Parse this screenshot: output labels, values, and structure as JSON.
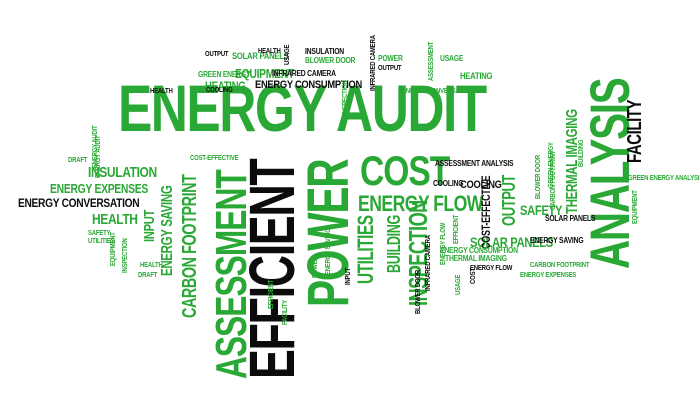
{
  "colors": {
    "green": "#2aa835",
    "dark_green": "#1f7f2a",
    "black": "#0c0c0c"
  },
  "words": [
    {
      "text": "ENERGY AUDIT",
      "color": "green",
      "role": "headline"
    },
    {
      "text": "ANALYSIS",
      "color": "green"
    },
    {
      "text": "EFFICIENT",
      "color": "black"
    },
    {
      "text": "POWER",
      "color": "green"
    },
    {
      "text": "ASSESSMENT",
      "color": "green"
    },
    {
      "text": "COST",
      "color": "green"
    },
    {
      "text": "ENERGY FLOW",
      "color": "green"
    },
    {
      "text": "ENERGY CONSUMPTION",
      "color": "black"
    },
    {
      "text": "INSPECTION",
      "color": "green"
    },
    {
      "text": "UTILITIES",
      "color": "green"
    },
    {
      "text": "CARBON FOOTPRINT",
      "color": "green"
    },
    {
      "text": "ENERGY SAVING",
      "color": "green"
    },
    {
      "text": "INSULATION",
      "color": "green"
    },
    {
      "text": "ENERGY EXPENSES",
      "color": "green"
    },
    {
      "text": "ENERGY CONVERSATION",
      "color": "black"
    },
    {
      "text": "HEALTH",
      "color": "green"
    },
    {
      "text": "INPUT",
      "color": "green"
    },
    {
      "text": "FACILITY",
      "color": "black"
    },
    {
      "text": "THERMAL IMAGING",
      "color": "green"
    },
    {
      "text": "SOLAR PANELS",
      "color": "green"
    },
    {
      "text": "SAFETY",
      "color": "green"
    },
    {
      "text": "COST-EFFECTIVE",
      "color": "black"
    },
    {
      "text": "OUTPUT",
      "color": "green"
    },
    {
      "text": "BUILDING",
      "color": "green"
    },
    {
      "text": "COOLING",
      "color": "black"
    },
    {
      "text": "EQUIPMENT",
      "color": "green"
    },
    {
      "text": "HEATING",
      "color": "green"
    },
    {
      "text": "SOLAR PANELS",
      "color": "green"
    },
    {
      "text": "INFRARED CAMERA",
      "color": "black"
    },
    {
      "text": "BLOWER DOOR",
      "color": "green"
    },
    {
      "text": "INSULATION",
      "color": "black"
    },
    {
      "text": "OUTPUT",
      "color": "black"
    },
    {
      "text": "GREEN ENERGY",
      "color": "green"
    },
    {
      "text": "HEALTH",
      "color": "black"
    },
    {
      "text": "USAGE",
      "color": "black"
    },
    {
      "text": "POWER",
      "color": "green"
    },
    {
      "text": "OUTPUT",
      "color": "black"
    },
    {
      "text": "USAGE",
      "color": "green"
    },
    {
      "text": "HEATING",
      "color": "green"
    },
    {
      "text": "ASSESSMENT",
      "color": "green"
    },
    {
      "text": "INFRARED CAMERA",
      "color": "black"
    },
    {
      "text": "ENERGY CONVERSATION",
      "color": "green"
    },
    {
      "text": "COOLING",
      "color": "black"
    },
    {
      "text": "HEALTH",
      "color": "black"
    },
    {
      "text": "COST-EFFECTIVE",
      "color": "green"
    },
    {
      "text": "ASSESSMENT ANALYSIS",
      "color": "black"
    },
    {
      "text": "COOLING",
      "color": "black"
    },
    {
      "text": "DRAFT",
      "color": "green"
    },
    {
      "text": "ENERGY AUDIT",
      "color": "green"
    },
    {
      "text": "SAFETY",
      "color": "green"
    },
    {
      "text": "UTILITIES",
      "color": "green"
    },
    {
      "text": "EQUIPMENT",
      "color": "green"
    },
    {
      "text": "INSPECTION",
      "color": "green"
    },
    {
      "text": "DRAFT",
      "color": "green"
    },
    {
      "text": "SOLAR PANELS",
      "color": "black"
    },
    {
      "text": "ENERGY SAVING",
      "color": "black"
    },
    {
      "text": "THERMAL IMAGING",
      "color": "green"
    },
    {
      "text": "ENERGY FLOW",
      "color": "black"
    },
    {
      "text": "CARBON FOOTPRINT",
      "color": "green"
    },
    {
      "text": "ENERGY EXPENSES",
      "color": "green"
    },
    {
      "text": "ENERGY CONSUMPTION",
      "color": "green"
    },
    {
      "text": "GREEN ENERGY ANALYSIS",
      "color": "green"
    },
    {
      "text": "EQUIPMENT",
      "color": "green"
    },
    {
      "text": "EFFICIENT",
      "color": "green"
    },
    {
      "text": "INSPECTION",
      "color": "green"
    },
    {
      "text": "BLOWER DOOR",
      "color": "green"
    },
    {
      "text": "CARBON FOOTPRINT",
      "color": "green"
    },
    {
      "text": "GREEN ENERGY",
      "color": "green"
    },
    {
      "text": "BUILDING",
      "color": "green"
    },
    {
      "text": "INFRARED CAMERA",
      "color": "black"
    },
    {
      "text": "BLOWER DOOR",
      "color": "black"
    },
    {
      "text": "USAGE",
      "color": "green"
    },
    {
      "text": "COST",
      "color": "black"
    },
    {
      "text": "ENERGY SAVING",
      "color": "green"
    },
    {
      "text": "ENERGY FLOW",
      "color": "green"
    },
    {
      "text": "EFFICIENT",
      "color": "green"
    },
    {
      "text": "ENERGY AUDIT",
      "color": "green"
    },
    {
      "text": "HEALTH",
      "color": "green"
    },
    {
      "text": "INPUT",
      "color": "black"
    },
    {
      "text": "FACILITY",
      "color": "green"
    },
    {
      "text": "POWER",
      "color": "green"
    }
  ]
}
